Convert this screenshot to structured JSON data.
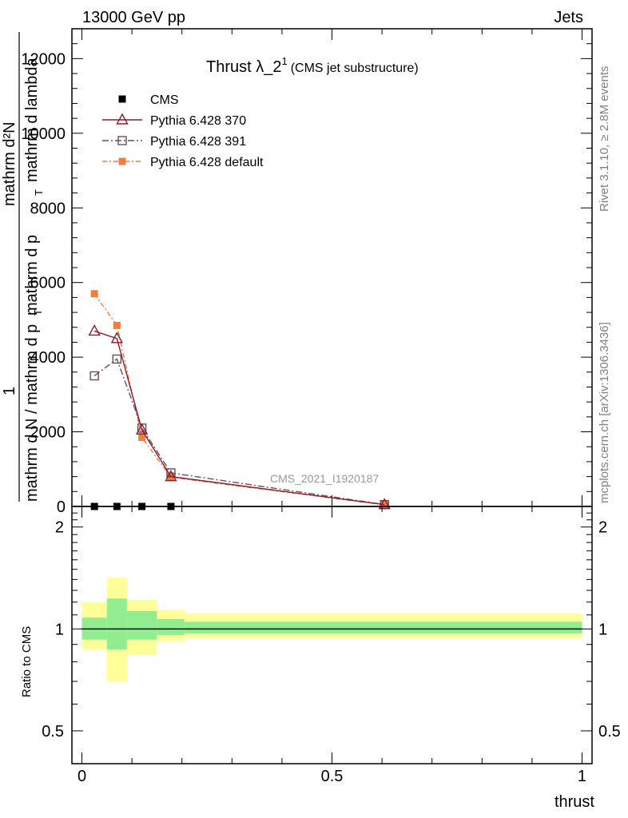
{
  "header": {
    "left": "13000 GeV pp",
    "right": "Jets"
  },
  "side_labels": {
    "rivet": "Rivet 3.1.10, ≥ 2.8M events",
    "mcplots": "mcplots.cern.ch [arXiv:1306.3436]"
  },
  "watermark": "CMS_2021_I1920187",
  "colors": {
    "cms": "#000000",
    "p370": "#8b1a2b",
    "p391": "#6b4c5c",
    "pdefault": "#f47c3c",
    "band_outer": "#ffff99",
    "band_inner": "#90ee90"
  },
  "chart_data": [
    {
      "type": "line",
      "title_main": "Thrust λ_2",
      "title_sup": "1",
      "title_sub": "(CMS jet substructure)",
      "ylabel_numerator": "1",
      "ylabel_top_a": "mathrm d²N",
      "ylabel_top_b": "mathrm d p",
      "ylabel_top_c": "mathrm d lambda",
      "ylabel_sub_t": "T",
      "ylabel_bottom_a": "mathrm d N / mathrm d p",
      "ylabel_bottom_b": "T",
      "xlim": [
        -0.02,
        1.02
      ],
      "ylim": [
        0,
        12800
      ],
      "yticks": [
        0,
        2000,
        4000,
        6000,
        8000,
        10000,
        12000
      ],
      "ytick_labels": [
        "0",
        "2000",
        "4000",
        "6000",
        "8000",
        "10000",
        "12000"
      ],
      "legend_position": "top-left",
      "series": [
        {
          "name": "CMS",
          "marker": "filled-square",
          "x": [
            0.025,
            0.07,
            0.12,
            0.178
          ],
          "y": [
            0,
            0,
            0,
            0
          ]
        },
        {
          "name": "Pythia 6.428 370",
          "marker": "open-triangle",
          "line": "solid",
          "x": [
            0.025,
            0.07,
            0.12,
            0.178,
            0.605
          ],
          "y": [
            4700,
            4500,
            2050,
            800,
            50
          ]
        },
        {
          "name": "Pythia 6.428 391",
          "marker": "open-square",
          "line": "dash-dot",
          "x": [
            0.025,
            0.07,
            0.12,
            0.178,
            0.605
          ],
          "y": [
            3500,
            3950,
            2100,
            900,
            50
          ]
        },
        {
          "name": "Pythia 6.428 default",
          "marker": "filled-square",
          "line": "dash-dot",
          "x": [
            0.025,
            0.07,
            0.12,
            0.178,
            0.605
          ],
          "y": [
            5700,
            4850,
            1850,
            780,
            45
          ]
        }
      ]
    },
    {
      "type": "area",
      "ylabel": "Ratio to CMS",
      "xlabel": "thrust",
      "xlim": [
        -0.02,
        1.02
      ],
      "ylim": [
        0.4,
        2.3
      ],
      "yscale": "log",
      "yticks": [
        0.5,
        1,
        2
      ],
      "ytick_labels": [
        "0.5",
        "1",
        "2"
      ],
      "xticks": [
        0,
        0.5,
        1
      ],
      "xtick_labels": [
        "0",
        "0.5",
        "1"
      ],
      "bins": [
        {
          "x0": 0.0,
          "x1": 0.05,
          "outer": [
            0.87,
            1.2
          ],
          "inner": [
            0.93,
            1.08
          ]
        },
        {
          "x0": 0.05,
          "x1": 0.09,
          "outer": [
            0.7,
            1.42
          ],
          "inner": [
            0.87,
            1.23
          ]
        },
        {
          "x0": 0.09,
          "x1": 0.15,
          "outer": [
            0.84,
            1.22
          ],
          "inner": [
            0.93,
            1.13
          ]
        },
        {
          "x0": 0.15,
          "x1": 0.205,
          "outer": [
            0.92,
            1.14
          ],
          "inner": [
            0.96,
            1.07
          ]
        },
        {
          "x0": 0.205,
          "x1": 1.0,
          "outer": [
            0.94,
            1.11
          ],
          "inner": [
            0.97,
            1.05
          ]
        }
      ],
      "reference_line": 1
    }
  ]
}
